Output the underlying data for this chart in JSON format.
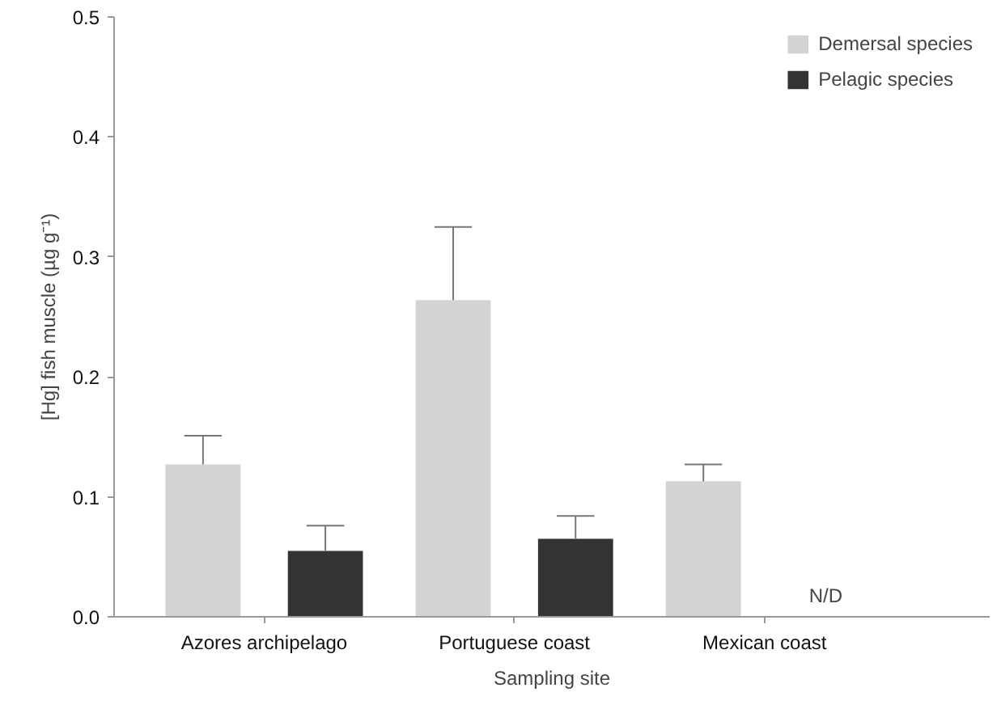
{
  "chart_data": {
    "type": "bar",
    "xlabel": "Sampling site",
    "ylabel": "[Hg] fish muscle (µg g⁻¹)",
    "categories": [
      "Azores archipelago",
      "Portuguese coast",
      "Mexican coast"
    ],
    "series": [
      {
        "name": "Demersal species",
        "color": "#d3d3d3",
        "values": [
          0.127,
          0.264,
          0.113
        ],
        "errors": [
          [
            0.127,
            0.151
          ],
          [
            0.264,
            0.325
          ],
          [
            0.113,
            0.127
          ]
        ]
      },
      {
        "name": "Pelagic species",
        "color": "#333333",
        "values": [
          0.055,
          0.065,
          null
        ],
        "errors": [
          [
            0.055,
            0.076
          ],
          [
            0.065,
            0.084
          ],
          null
        ]
      }
    ],
    "annotations": [
      "N/D"
    ],
    "ylim": [
      0,
      0.5
    ],
    "yticks": [
      {
        "value": 0,
        "label": "0.0"
      },
      0.1,
      0.2,
      0.3,
      0.4,
      0.5
    ],
    "grid": false,
    "legend": "top right"
  }
}
